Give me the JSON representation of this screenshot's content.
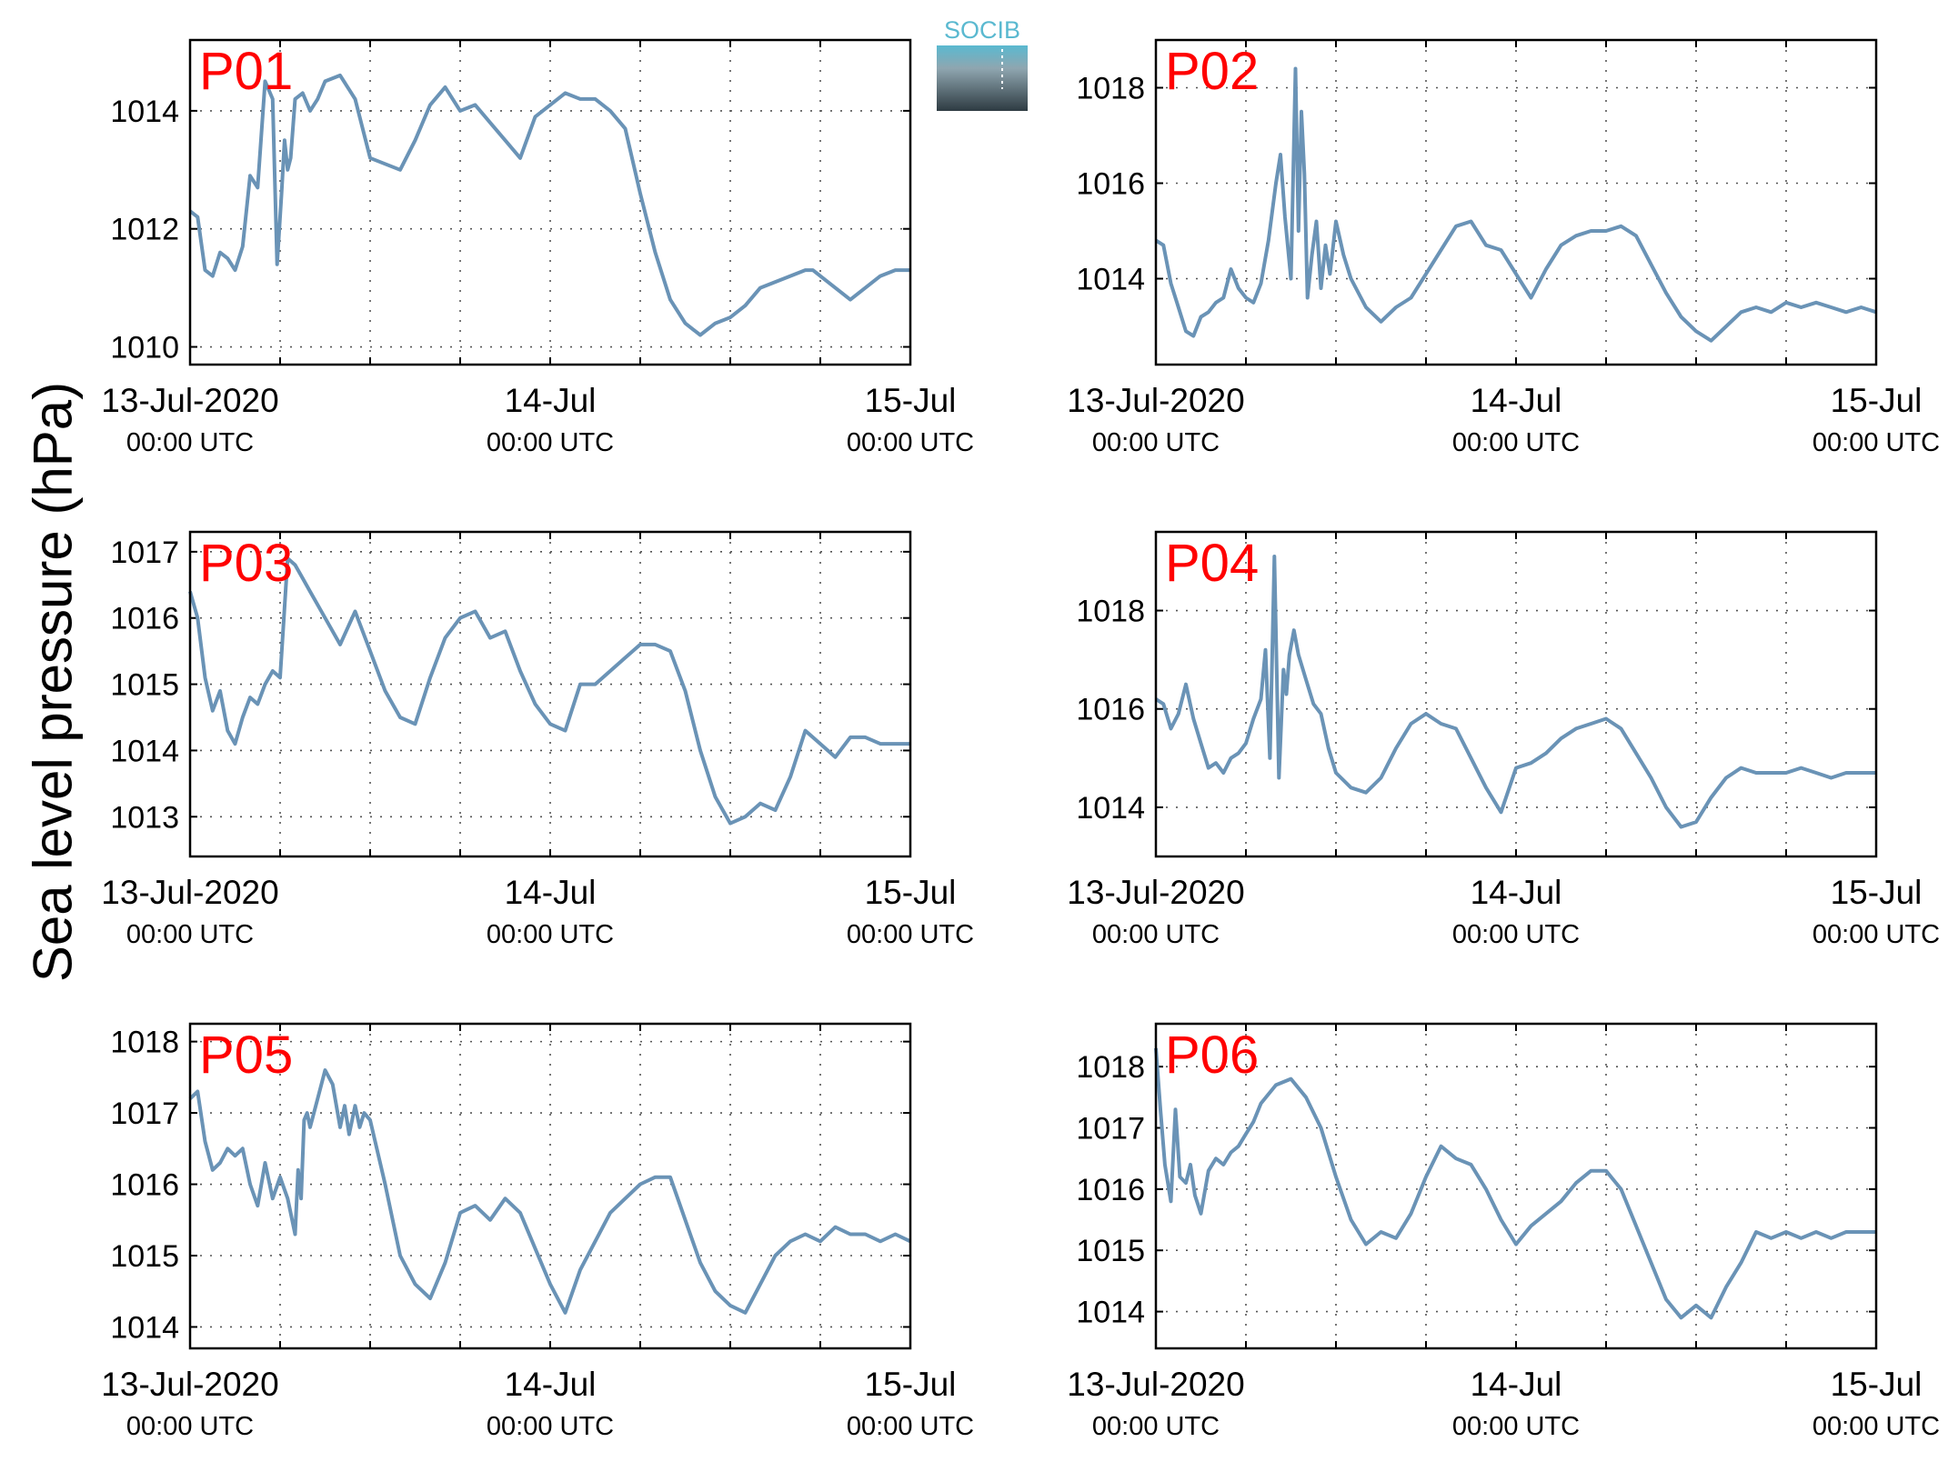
{
  "ylabel": "Sea level pressure (hPa)",
  "logo": {
    "text": "SOCIB",
    "colors": {
      "text": "#5ab9d0",
      "top": "#5ab9d0",
      "bottom": "#2e3b42"
    }
  },
  "colors": {
    "series": "#6a93b6",
    "panel_label": "#ff0000"
  },
  "chart_data": [
    {
      "type": "line",
      "title": "P01",
      "xlim": [
        0,
        48
      ],
      "ylim": [
        1009.7,
        1015.2
      ],
      "yticks": [
        1010,
        1012,
        1014
      ],
      "xticks": [
        0,
        24,
        48
      ],
      "xtick_labels": [
        "13-Jul-2020",
        "14-Jul",
        "15-Jul"
      ],
      "xtick_sublabels": [
        "00:00 UTC",
        "00:00 UTC",
        "00:00 UTC"
      ],
      "x": [
        0,
        0.5,
        1,
        1.5,
        2,
        2.5,
        3,
        3.5,
        4,
        4.5,
        5,
        5.5,
        5.8,
        6.1,
        6.3,
        6.5,
        6.7,
        7,
        7.5,
        8,
        8.5,
        9,
        10,
        11,
        12,
        13,
        14,
        15,
        16,
        17,
        18,
        19,
        20,
        21,
        22,
        23,
        24,
        25,
        26,
        27,
        28,
        29,
        30,
        31,
        32,
        33,
        34,
        35,
        36,
        37,
        38,
        39,
        40,
        41,
        41.5,
        42,
        43,
        44,
        45,
        46,
        47,
        48
      ],
      "values": [
        1012.3,
        1012.2,
        1011.3,
        1011.2,
        1011.6,
        1011.5,
        1011.3,
        1011.7,
        1012.9,
        1012.7,
        1014.5,
        1014.2,
        1011.4,
        1012.6,
        1013.5,
        1013.0,
        1013.2,
        1014.2,
        1014.3,
        1014.0,
        1014.2,
        1014.5,
        1014.6,
        1014.2,
        1013.2,
        1013.1,
        1013.0,
        1013.5,
        1014.1,
        1014.4,
        1014.0,
        1014.1,
        1013.8,
        1013.5,
        1013.2,
        1013.9,
        1014.1,
        1014.3,
        1014.2,
        1014.2,
        1014.0,
        1013.7,
        1012.6,
        1011.6,
        1010.8,
        1010.4,
        1010.2,
        1010.4,
        1010.5,
        1010.7,
        1011.0,
        1011.1,
        1011.2,
        1011.3,
        1011.3,
        1011.2,
        1011.0,
        1010.8,
        1011.0,
        1011.2,
        1011.3,
        1011.3
      ]
    },
    {
      "type": "line",
      "title": "P02",
      "xlim": [
        0,
        48
      ],
      "ylim": [
        1012.2,
        1019.0
      ],
      "yticks": [
        1014,
        1016,
        1018
      ],
      "xticks": [
        0,
        24,
        48
      ],
      "xtick_labels": [
        "13-Jul-2020",
        "14-Jul",
        "15-Jul"
      ],
      "xtick_sublabels": [
        "00:00 UTC",
        "00:00 UTC",
        "00:00 UTC"
      ],
      "x": [
        0,
        0.5,
        1,
        1.5,
        2,
        2.5,
        3,
        3.5,
        4,
        4.5,
        5,
        5.5,
        6,
        6.5,
        7,
        7.5,
        8,
        8.3,
        8.6,
        9,
        9.3,
        9.5,
        9.7,
        9.9,
        10.1,
        10.4,
        10.7,
        11,
        11.3,
        11.6,
        12,
        12.5,
        13,
        14,
        15,
        16,
        17,
        18,
        19,
        20,
        21,
        22,
        23,
        24,
        25,
        26,
        27,
        28,
        29,
        30,
        31,
        32,
        33,
        34,
        35,
        36,
        37,
        38,
        39,
        40,
        41,
        42,
        43,
        44,
        45,
        46,
        47,
        48
      ],
      "values": [
        1014.8,
        1014.7,
        1013.9,
        1013.4,
        1012.9,
        1012.8,
        1013.2,
        1013.3,
        1013.5,
        1013.6,
        1014.2,
        1013.8,
        1013.6,
        1013.5,
        1013.9,
        1014.8,
        1016.0,
        1016.6,
        1015.3,
        1014.0,
        1018.4,
        1015.0,
        1017.5,
        1016.2,
        1013.6,
        1014.5,
        1015.2,
        1013.8,
        1014.7,
        1014.1,
        1015.2,
        1014.5,
        1014.0,
        1013.4,
        1013.1,
        1013.4,
        1013.6,
        1014.1,
        1014.6,
        1015.1,
        1015.2,
        1014.7,
        1014.6,
        1014.1,
        1013.6,
        1014.2,
        1014.7,
        1014.9,
        1015.0,
        1015.0,
        1015.1,
        1014.9,
        1014.3,
        1013.7,
        1013.2,
        1012.9,
        1012.7,
        1013.0,
        1013.3,
        1013.4,
        1013.3,
        1013.5,
        1013.4,
        1013.5,
        1013.4,
        1013.3,
        1013.4,
        1013.3
      ]
    },
    {
      "type": "line",
      "title": "P03",
      "xlim": [
        0,
        48
      ],
      "ylim": [
        1012.4,
        1017.3
      ],
      "yticks": [
        1013,
        1014,
        1015,
        1016,
        1017
      ],
      "xticks": [
        0,
        24,
        48
      ],
      "xtick_labels": [
        "13-Jul-2020",
        "14-Jul",
        "15-Jul"
      ],
      "xtick_sublabels": [
        "00:00 UTC",
        "00:00 UTC",
        "00:00 UTC"
      ],
      "x": [
        0,
        0.5,
        1,
        1.5,
        2,
        2.5,
        3,
        3.5,
        4,
        4.5,
        5,
        5.5,
        6,
        6.5,
        7,
        7.5,
        8,
        9,
        10,
        11,
        12,
        13,
        14,
        15,
        16,
        17,
        18,
        19,
        20,
        21,
        22,
        23,
        24,
        25,
        26,
        27,
        28,
        29,
        30,
        31,
        32,
        33,
        34,
        35,
        36,
        37,
        38,
        39,
        40,
        41,
        42,
        43,
        44,
        45,
        46,
        47,
        48
      ],
      "values": [
        1016.4,
        1016.0,
        1015.1,
        1014.6,
        1014.9,
        1014.3,
        1014.1,
        1014.5,
        1014.8,
        1014.7,
        1015.0,
        1015.2,
        1015.1,
        1016.9,
        1016.8,
        1016.6,
        1016.4,
        1016.0,
        1015.6,
        1016.1,
        1015.5,
        1014.9,
        1014.5,
        1014.4,
        1015.1,
        1015.7,
        1016.0,
        1016.1,
        1015.7,
        1015.8,
        1015.2,
        1014.7,
        1014.4,
        1014.3,
        1015.0,
        1015.0,
        1015.2,
        1015.4,
        1015.6,
        1015.6,
        1015.5,
        1014.9,
        1014.0,
        1013.3,
        1012.9,
        1013.0,
        1013.2,
        1013.1,
        1013.6,
        1014.3,
        1014.1,
        1013.9,
        1014.2,
        1014.2,
        1014.1,
        1014.1,
        1014.1
      ]
    },
    {
      "type": "line",
      "title": "P04",
      "xlim": [
        0,
        48
      ],
      "ylim": [
        1013.0,
        1019.6
      ],
      "yticks": [
        1014,
        1016,
        1018
      ],
      "xticks": [
        0,
        24,
        48
      ],
      "xtick_labels": [
        "13-Jul-2020",
        "14-Jul",
        "15-Jul"
      ],
      "xtick_sublabels": [
        "00:00 UTC",
        "00:00 UTC",
        "00:00 UTC"
      ],
      "x": [
        0,
        0.5,
        1,
        1.5,
        2,
        2.5,
        3,
        3.5,
        4,
        4.5,
        5,
        5.5,
        6,
        6.5,
        7,
        7.3,
        7.6,
        7.9,
        8.2,
        8.5,
        8.7,
        8.9,
        9.2,
        9.5,
        10,
        10.5,
        11,
        11.5,
        12,
        13,
        14,
        15,
        16,
        17,
        18,
        19,
        20,
        21,
        22,
        23,
        24,
        25,
        26,
        27,
        28,
        29,
        30,
        31,
        32,
        33,
        34,
        35,
        36,
        37,
        38,
        39,
        40,
        41,
        42,
        43,
        44,
        45,
        46,
        47,
        48
      ],
      "values": [
        1016.2,
        1016.1,
        1015.6,
        1015.9,
        1016.5,
        1015.8,
        1015.3,
        1014.8,
        1014.9,
        1014.7,
        1015.0,
        1015.1,
        1015.3,
        1015.8,
        1016.2,
        1017.2,
        1015.0,
        1019.1,
        1014.6,
        1016.8,
        1016.3,
        1017.1,
        1017.6,
        1017.1,
        1016.6,
        1016.1,
        1015.9,
        1015.2,
        1014.7,
        1014.4,
        1014.3,
        1014.6,
        1015.2,
        1015.7,
        1015.9,
        1015.7,
        1015.6,
        1015.0,
        1014.4,
        1013.9,
        1014.8,
        1014.9,
        1015.1,
        1015.4,
        1015.6,
        1015.7,
        1015.8,
        1015.6,
        1015.1,
        1014.6,
        1014.0,
        1013.6,
        1013.7,
        1014.2,
        1014.6,
        1014.8,
        1014.7,
        1014.7,
        1014.7,
        1014.8,
        1014.7,
        1014.6,
        1014.7,
        1014.7,
        1014.7
      ]
    },
    {
      "type": "line",
      "title": "P05",
      "xlim": [
        0,
        48
      ],
      "ylim": [
        1013.7,
        1018.25
      ],
      "yticks": [
        1014,
        1015,
        1016,
        1017,
        1018
      ],
      "xticks": [
        0,
        24,
        48
      ],
      "xtick_labels": [
        "13-Jul-2020",
        "14-Jul",
        "15-Jul"
      ],
      "xtick_sublabels": [
        "00:00 UTC",
        "00:00 UTC",
        "00:00 UTC"
      ],
      "x": [
        0,
        0.5,
        1,
        1.5,
        2,
        2.5,
        3,
        3.5,
        4,
        4.5,
        5,
        5.5,
        6,
        6.5,
        7,
        7.2,
        7.4,
        7.6,
        7.8,
        8,
        8.5,
        9,
        9.5,
        10,
        10.3,
        10.6,
        11,
        11.3,
        11.6,
        12,
        13,
        14,
        15,
        16,
        17,
        18,
        19,
        20,
        21,
        22,
        23,
        24,
        25,
        26,
        27,
        28,
        29,
        30,
        31,
        32,
        33,
        34,
        35,
        36,
        37,
        38,
        39,
        40,
        41,
        42,
        43,
        44,
        45,
        46,
        47,
        48
      ],
      "values": [
        1017.2,
        1017.3,
        1016.6,
        1016.2,
        1016.3,
        1016.5,
        1016.4,
        1016.5,
        1016.0,
        1015.7,
        1016.3,
        1015.8,
        1016.1,
        1015.8,
        1015.3,
        1016.2,
        1015.8,
        1016.9,
        1017.0,
        1016.8,
        1017.2,
        1017.6,
        1017.4,
        1016.8,
        1017.1,
        1016.7,
        1017.1,
        1016.8,
        1017.0,
        1016.9,
        1016.0,
        1015.0,
        1014.6,
        1014.4,
        1014.9,
        1015.6,
        1015.7,
        1015.5,
        1015.8,
        1015.6,
        1015.1,
        1014.6,
        1014.2,
        1014.8,
        1015.2,
        1015.6,
        1015.8,
        1016.0,
        1016.1,
        1016.1,
        1015.5,
        1014.9,
        1014.5,
        1014.3,
        1014.2,
        1014.6,
        1015.0,
        1015.2,
        1015.3,
        1015.2,
        1015.4,
        1015.3,
        1015.3,
        1015.2,
        1015.3,
        1015.2
      ]
    },
    {
      "type": "line",
      "title": "P06",
      "xlim": [
        0,
        48
      ],
      "ylim": [
        1013.4,
        1018.7
      ],
      "yticks": [
        1014,
        1015,
        1016,
        1017,
        1018
      ],
      "xticks": [
        0,
        24,
        48
      ],
      "xtick_labels": [
        "13-Jul-2020",
        "14-Jul",
        "15-Jul"
      ],
      "xtick_sublabels": [
        "00:00 UTC",
        "00:00 UTC",
        "00:00 UTC"
      ],
      "x": [
        0,
        0.3,
        0.6,
        1,
        1.3,
        1.6,
        2,
        2.3,
        2.6,
        3,
        3.5,
        4,
        4.5,
        5,
        5.5,
        6,
        6.5,
        7,
        8,
        9,
        10,
        11,
        12,
        13,
        14,
        15,
        16,
        17,
        18,
        19,
        20,
        21,
        22,
        23,
        24,
        25,
        26,
        27,
        28,
        29,
        30,
        31,
        32,
        33,
        34,
        35,
        36,
        37,
        38,
        39,
        40,
        41,
        42,
        43,
        44,
        45,
        46,
        47,
        48
      ],
      "values": [
        1018.3,
        1017.3,
        1016.4,
        1015.8,
        1017.3,
        1016.2,
        1016.1,
        1016.4,
        1015.9,
        1015.6,
        1016.3,
        1016.5,
        1016.4,
        1016.6,
        1016.7,
        1016.9,
        1017.1,
        1017.4,
        1017.7,
        1017.8,
        1017.5,
        1017.0,
        1016.2,
        1015.5,
        1015.1,
        1015.3,
        1015.2,
        1015.6,
        1016.2,
        1016.7,
        1016.5,
        1016.4,
        1016.0,
        1015.5,
        1015.1,
        1015.4,
        1015.6,
        1015.8,
        1016.1,
        1016.3,
        1016.3,
        1016.0,
        1015.4,
        1014.8,
        1014.2,
        1013.9,
        1014.1,
        1013.9,
        1014.4,
        1014.8,
        1015.3,
        1015.2,
        1015.3,
        1015.2,
        1015.3,
        1015.2,
        1015.3,
        1015.3,
        1015.3
      ]
    }
  ]
}
